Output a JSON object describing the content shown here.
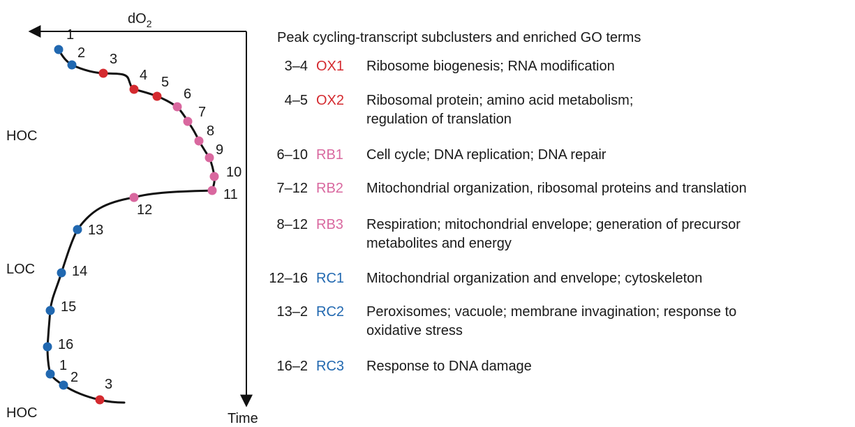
{
  "axes": {
    "x_label": "dO",
    "x_label_sub": "2",
    "y_label": "Time"
  },
  "states": {
    "top": "HOC",
    "middle": "LOC",
    "bottom": "HOC"
  },
  "colors": {
    "OX": "#d42a2f",
    "RB": "#d9689f",
    "RC": "#2168b0",
    "curve": "#111111"
  },
  "points": [
    {
      "label": "1",
      "group": "RC"
    },
    {
      "label": "2",
      "group": "RC"
    },
    {
      "label": "3",
      "group": "OX"
    },
    {
      "label": "4",
      "group": "OX"
    },
    {
      "label": "5",
      "group": "OX"
    },
    {
      "label": "6",
      "group": "RB"
    },
    {
      "label": "7",
      "group": "RB"
    },
    {
      "label": "8",
      "group": "RB"
    },
    {
      "label": "9",
      "group": "RB"
    },
    {
      "label": "10",
      "group": "RB"
    },
    {
      "label": "11",
      "group": "RB"
    },
    {
      "label": "12",
      "group": "RB"
    },
    {
      "label": "13",
      "group": "RC"
    },
    {
      "label": "14",
      "group": "RC"
    },
    {
      "label": "15",
      "group": "RC"
    },
    {
      "label": "16",
      "group": "RC"
    },
    {
      "label": "1",
      "group": "RC"
    },
    {
      "label": "2",
      "group": "RC"
    },
    {
      "label": "3",
      "group": "OX"
    }
  ],
  "table": {
    "title": "Peak cycling-transcript subclusters and enriched GO terms",
    "rows": [
      {
        "range": "3–4",
        "code": "OX1",
        "group": "OX",
        "lines": [
          "Ribosome biogenesis; RNA modification"
        ]
      },
      {
        "range": "4–5",
        "code": "OX2",
        "group": "OX",
        "lines": [
          "Ribosomal protein; amino acid metabolism;",
          "regulation of translation"
        ]
      },
      {
        "range": "6–10",
        "code": "RB1",
        "group": "RB",
        "lines": [
          "Cell cycle; DNA replication; DNA repair"
        ]
      },
      {
        "range": "7–12",
        "code": "RB2",
        "group": "RB",
        "lines": [
          "Mitochondrial organization, ribosomal proteins and translation"
        ]
      },
      {
        "range": "8–12",
        "code": "RB3",
        "group": "RB",
        "lines": [
          "Respiration; mitochondrial envelope; generation of precursor",
          "metabolites and energy"
        ]
      },
      {
        "range": "12–16",
        "code": "RC1",
        "group": "RC",
        "lines": [
          "Mitochondrial organization and envelope; cytoskeleton"
        ]
      },
      {
        "range": "13–2",
        "code": "RC2",
        "group": "RC",
        "lines": [
          "Peroxisomes; vacuole; membrane invagination; response to",
          "oxidative stress"
        ]
      },
      {
        "range": "16–2",
        "code": "RC3",
        "group": "RC",
        "lines": [
          "Response to DNA damage"
        ]
      }
    ]
  }
}
